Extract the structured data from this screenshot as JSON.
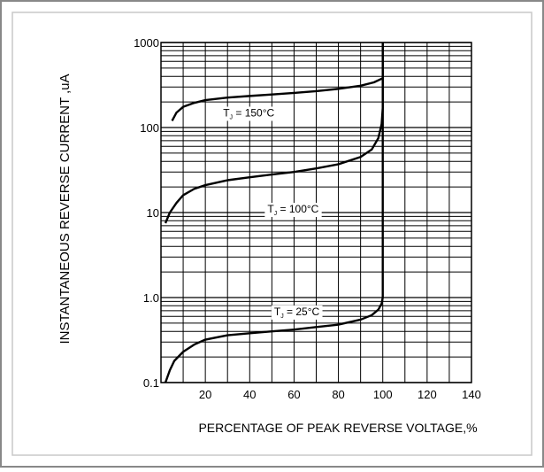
{
  "chart_data": {
    "type": "line",
    "xlabel": "PERCENTAGE OF PEAK REVERSE VOLTAGE,%",
    "ylabel": "INSTANTANEOUS REVERSE CURRENT ,uA",
    "xlim": [
      0,
      140
    ],
    "ylim": [
      0.1,
      1000
    ],
    "yscale": "log",
    "x_ticks": [
      20,
      40,
      60,
      80,
      100,
      120,
      140
    ],
    "x_tick_labels": [
      "20",
      "40",
      "60",
      "80",
      "100",
      "120",
      "140"
    ],
    "y_ticks": [
      0.1,
      1,
      10,
      100,
      1000
    ],
    "y_tick_labels": [
      "0.1",
      "1.0",
      "10",
      "100",
      "1000"
    ],
    "grid": true,
    "series": [
      {
        "name": "T_J = 150°C",
        "label_main": "T",
        "label_sub": "J",
        "label_rest": "= 150°C",
        "label_at": [
          28,
          135
        ],
        "points": [
          [
            5,
            120
          ],
          [
            7,
            150
          ],
          [
            10,
            175
          ],
          [
            15,
            195
          ],
          [
            20,
            210
          ],
          [
            30,
            225
          ],
          [
            40,
            235
          ],
          [
            50,
            245
          ],
          [
            60,
            255
          ],
          [
            70,
            268
          ],
          [
            80,
            285
          ],
          [
            90,
            310
          ],
          [
            96,
            340
          ],
          [
            100,
            380
          ],
          [
            100,
            1000
          ]
        ]
      },
      {
        "name": "T_J = 100°C",
        "label_main": "T",
        "label_sub": "J",
        "label_rest": "= 100°C",
        "label_at": [
          48,
          10
        ],
        "points": [
          [
            2,
            7.5
          ],
          [
            4,
            10
          ],
          [
            7,
            13
          ],
          [
            10,
            16
          ],
          [
            15,
            19
          ],
          [
            20,
            21
          ],
          [
            30,
            24
          ],
          [
            40,
            26
          ],
          [
            50,
            28
          ],
          [
            60,
            30
          ],
          [
            70,
            33
          ],
          [
            80,
            37
          ],
          [
            90,
            45
          ],
          [
            95,
            55
          ],
          [
            98,
            75
          ],
          [
            99.5,
            110
          ],
          [
            100,
            170
          ],
          [
            100,
            1000
          ]
        ]
      },
      {
        "name": "T_J = 25°C",
        "label_main": "T",
        "label_sub": "J",
        "label_rest": "= 25°C",
        "label_at": [
          51,
          0.62
        ],
        "points": [
          [
            2,
            0.1
          ],
          [
            4,
            0.14
          ],
          [
            6,
            0.18
          ],
          [
            10,
            0.23
          ],
          [
            15,
            0.28
          ],
          [
            20,
            0.32
          ],
          [
            30,
            0.36
          ],
          [
            40,
            0.38
          ],
          [
            50,
            0.4
          ],
          [
            60,
            0.42
          ],
          [
            70,
            0.45
          ],
          [
            80,
            0.48
          ],
          [
            90,
            0.55
          ],
          [
            95,
            0.62
          ],
          [
            98,
            0.72
          ],
          [
            99.5,
            0.85
          ],
          [
            100,
            1.0
          ],
          [
            100,
            1000
          ]
        ]
      }
    ]
  }
}
